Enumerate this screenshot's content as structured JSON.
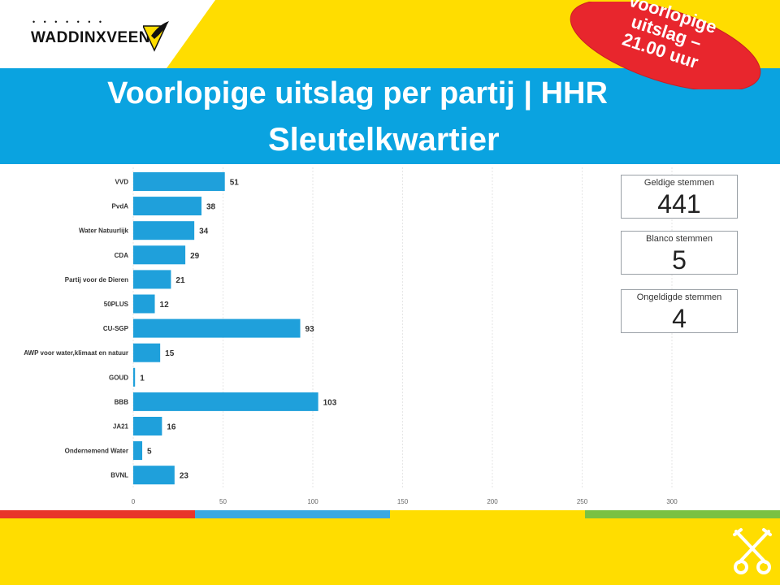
{
  "header": {
    "logo_text": "WADDINXVEEN",
    "badge_lines": [
      "Voorlopige",
      "uitslag –",
      "21.00 uur"
    ],
    "title_line1": "Voorlopige uitslag per partij | HHR",
    "title_line2": "Sleutelkwartier"
  },
  "kpis": [
    {
      "label": "Geldige stemmen",
      "value": "441"
    },
    {
      "label": "Blanco stemmen",
      "value": "5"
    },
    {
      "label": "Ongeldigde stemmen",
      "value": "4"
    }
  ],
  "colors": {
    "bar": "#1fa0db",
    "banner": "#0aa3e0",
    "yellow": "#ffdd00",
    "badge": "#e8262d",
    "stripe_red": "#e8352a",
    "stripe_blue": "#3aa8e0",
    "stripe_yellow": "#ffdd00",
    "stripe_green": "#7ac142"
  },
  "chart_data": {
    "type": "bar",
    "orientation": "horizontal",
    "categories": [
      "VVD",
      "PvdA",
      "Water Natuurlijk",
      "CDA",
      "Partij voor de Dieren",
      "50PLUS",
      "CU-SGP",
      "AWP voor water,klimaat en natuur",
      "GOUD",
      "BBB",
      "JA21",
      "Ondernemend Water",
      "BVNL"
    ],
    "values": [
      51,
      38,
      34,
      29,
      21,
      12,
      93,
      15,
      1,
      103,
      16,
      5,
      23
    ],
    "xlim": [
      0,
      300
    ],
    "xticks": [
      0,
      50,
      100,
      150,
      200,
      250,
      300
    ],
    "grid": true,
    "data_labels": true
  }
}
